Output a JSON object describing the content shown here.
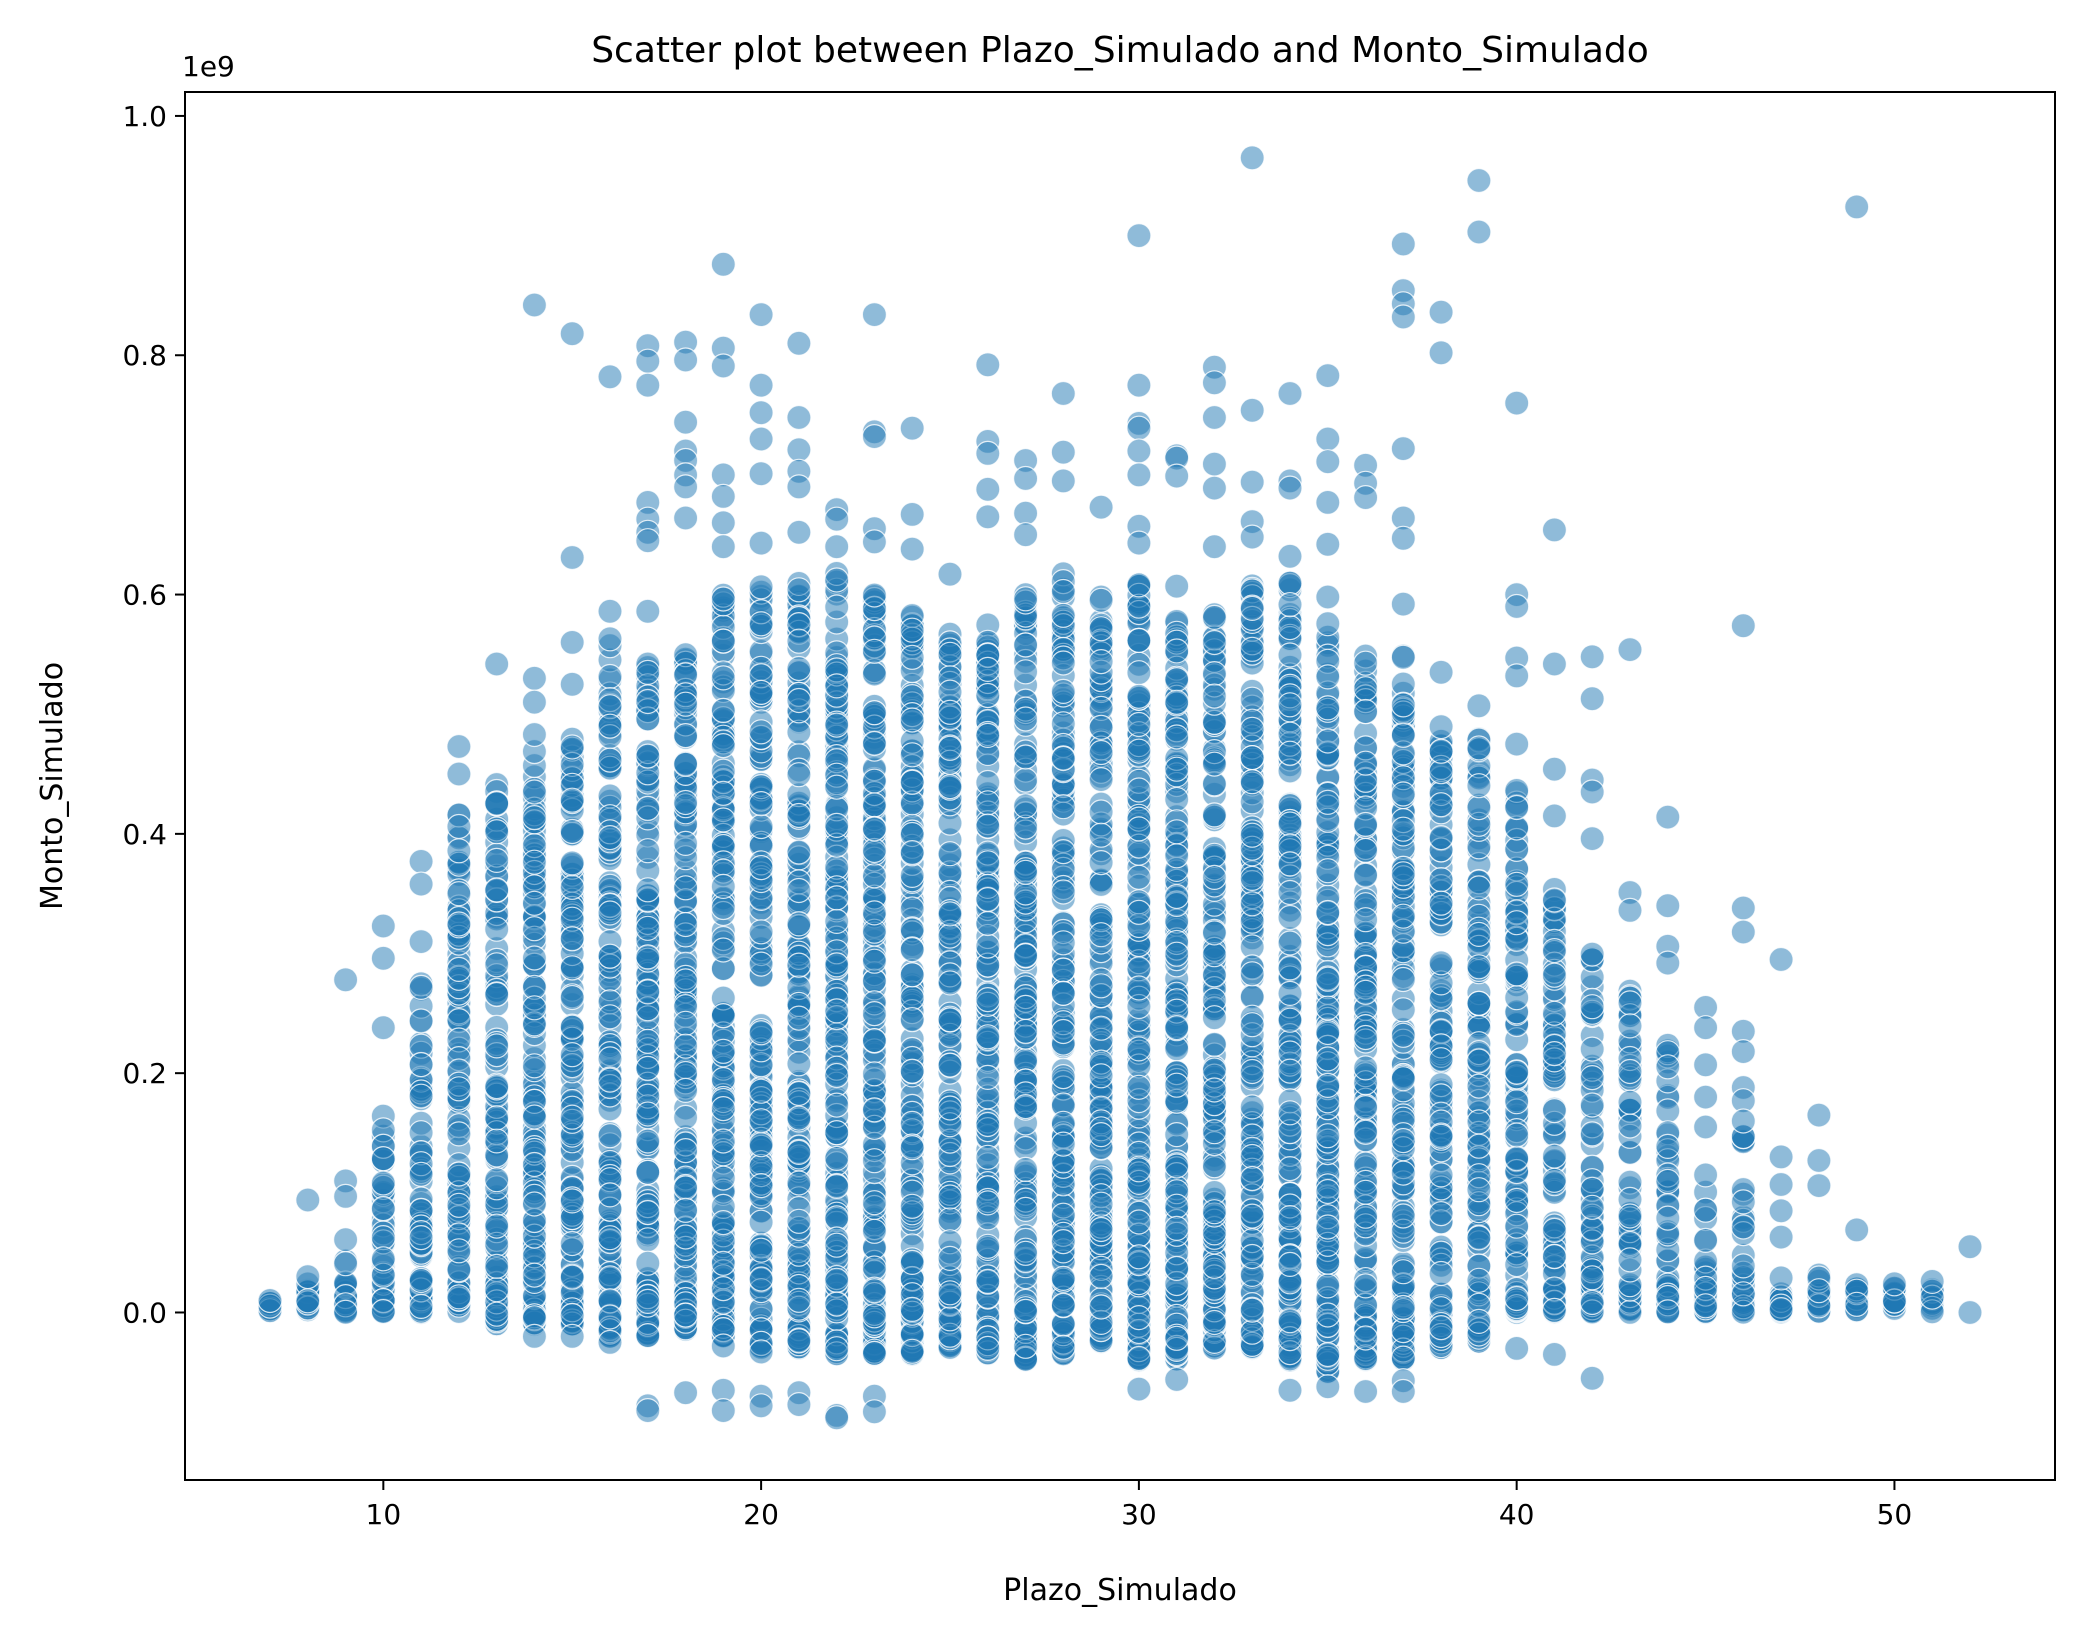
{
  "chart_data": {
    "type": "scatter",
    "title": "Scatter plot between Plazo_Simulado and Monto_Simulado",
    "xlabel": "Plazo_Simulado",
    "ylabel": "Monto_Simulado",
    "y_offset_text": "1e9",
    "xlim": [
      4.75,
      54.25
    ],
    "ylim": [
      -0.14,
      1.02
    ],
    "x_ticks": [
      10,
      20,
      30,
      40,
      50
    ],
    "x_tick_labels": [
      "10",
      "20",
      "30",
      "40",
      "50"
    ],
    "y_ticks": [
      0.0,
      0.2,
      0.4,
      0.6,
      0.8,
      1.0
    ],
    "y_tick_labels": [
      "0.0",
      "0.2",
      "0.4",
      "0.6",
      "0.8",
      "1.0"
    ],
    "grid": false,
    "legend": "none",
    "colors": {
      "marker": "#1f77b4",
      "marker_edge": "#ffffff",
      "axes": "#000000",
      "background": "#ffffff"
    },
    "marker_alpha": 0.5,
    "dense_columns": [
      {
        "x": 7,
        "min": 0.0,
        "max": 0.01,
        "density": 0.4
      },
      {
        "x": 8,
        "min": 0.0,
        "max": 0.03,
        "density": 0.6
      },
      {
        "x": 9,
        "min": 0.0,
        "max": 0.065,
        "density": 0.7
      },
      {
        "x": 10,
        "min": 0.0,
        "max": 0.165,
        "density": 0.8
      },
      {
        "x": 11,
        "min": 0.0,
        "max": 0.28,
        "density": 0.85
      },
      {
        "x": 12,
        "min": 0.0,
        "max": 0.42,
        "density": 0.9
      },
      {
        "x": 13,
        "min": -0.01,
        "max": 0.445,
        "density": 0.9
      },
      {
        "x": 14,
        "min": -0.01,
        "max": 0.47,
        "density": 0.95
      },
      {
        "x": 15,
        "min": -0.01,
        "max": 0.49,
        "density": 0.95
      },
      {
        "x": 16,
        "min": -0.02,
        "max": 0.56,
        "density": 1.0
      },
      {
        "x": 17,
        "min": -0.02,
        "max": 0.56,
        "density": 1.0
      },
      {
        "x": 18,
        "min": -0.015,
        "max": 0.57,
        "density": 1.0
      },
      {
        "x": 19,
        "min": -0.02,
        "max": 0.6,
        "density": 1.0
      },
      {
        "x": 20,
        "min": -0.03,
        "max": 0.61,
        "density": 1.0
      },
      {
        "x": 21,
        "min": -0.03,
        "max": 0.62,
        "density": 1.0
      },
      {
        "x": 22,
        "min": -0.035,
        "max": 0.62,
        "density": 1.0
      },
      {
        "x": 23,
        "min": -0.035,
        "max": 0.6,
        "density": 1.0
      },
      {
        "x": 24,
        "min": -0.035,
        "max": 0.59,
        "density": 1.0
      },
      {
        "x": 25,
        "min": -0.03,
        "max": 0.57,
        "density": 1.0
      },
      {
        "x": 26,
        "min": -0.035,
        "max": 0.58,
        "density": 1.0
      },
      {
        "x": 27,
        "min": -0.04,
        "max": 0.6,
        "density": 1.0
      },
      {
        "x": 28,
        "min": -0.035,
        "max": 0.62,
        "density": 1.0
      },
      {
        "x": 29,
        "min": -0.025,
        "max": 0.6,
        "density": 1.0
      },
      {
        "x": 30,
        "min": -0.04,
        "max": 0.61,
        "density": 1.0
      },
      {
        "x": 31,
        "min": -0.04,
        "max": 0.58,
        "density": 1.0
      },
      {
        "x": 32,
        "min": -0.03,
        "max": 0.6,
        "density": 1.0
      },
      {
        "x": 33,
        "min": -0.03,
        "max": 0.61,
        "density": 1.0
      },
      {
        "x": 34,
        "min": -0.04,
        "max": 0.61,
        "density": 1.0
      },
      {
        "x": 35,
        "min": -0.05,
        "max": 0.6,
        "density": 1.0
      },
      {
        "x": 36,
        "min": -0.04,
        "max": 0.55,
        "density": 0.95
      },
      {
        "x": 37,
        "min": -0.04,
        "max": 0.55,
        "density": 0.95
      },
      {
        "x": 38,
        "min": -0.03,
        "max": 0.49,
        "density": 0.95
      },
      {
        "x": 39,
        "min": -0.025,
        "max": 0.48,
        "density": 0.9
      },
      {
        "x": 40,
        "min": 0.0,
        "max": 0.44,
        "density": 0.9
      },
      {
        "x": 41,
        "min": 0.0,
        "max": 0.37,
        "density": 0.85
      },
      {
        "x": 42,
        "min": 0.0,
        "max": 0.3,
        "density": 0.8
      },
      {
        "x": 43,
        "min": 0.0,
        "max": 0.27,
        "density": 0.75
      },
      {
        "x": 44,
        "min": 0.0,
        "max": 0.23,
        "density": 0.7
      },
      {
        "x": 45,
        "min": 0.0,
        "max": 0.12,
        "density": 0.6
      },
      {
        "x": 46,
        "min": 0.0,
        "max": 0.15,
        "density": 0.6
      },
      {
        "x": 47,
        "min": 0.0,
        "max": 0.035,
        "density": 0.5
      },
      {
        "x": 48,
        "min": 0.0,
        "max": 0.045,
        "density": 0.5
      },
      {
        "x": 49,
        "min": 0.0,
        "max": 0.035,
        "density": 0.4
      },
      {
        "x": 50,
        "min": 0.0,
        "max": 0.022,
        "density": 0.3
      },
      {
        "x": 51,
        "min": 0.0,
        "max": 0.02,
        "density": 0.3
      }
    ],
    "outliers": [
      {
        "x": 7,
        "y": 0.01
      },
      {
        "x": 8,
        "y": 0.094
      },
      {
        "x": 8,
        "y": 0.03
      },
      {
        "x": 9,
        "y": 0.278
      },
      {
        "x": 9,
        "y": 0.11
      },
      {
        "x": 9,
        "y": 0.097
      },
      {
        "x": 10,
        "y": 0.323
      },
      {
        "x": 10,
        "y": 0.296
      },
      {
        "x": 10,
        "y": 0.238
      },
      {
        "x": 11,
        "y": 0.377
      },
      {
        "x": 11,
        "y": 0.358
      },
      {
        "x": 11,
        "y": 0.31
      },
      {
        "x": 12,
        "y": 0.473
      },
      {
        "x": 12,
        "y": 0.45
      },
      {
        "x": 13,
        "y": 0.542
      },
      {
        "x": 14,
        "y": 0.842
      },
      {
        "x": 14,
        "y": 0.53
      },
      {
        "x": 14,
        "y": 0.51
      },
      {
        "x": 14,
        "y": 0.483
      },
      {
        "x": 14,
        "y": -0.02
      },
      {
        "x": 15,
        "y": 0.818
      },
      {
        "x": 15,
        "y": 0.631
      },
      {
        "x": 15,
        "y": 0.56
      },
      {
        "x": 15,
        "y": 0.525
      },
      {
        "x": 15,
        "y": -0.02
      },
      {
        "x": 16,
        "y": 0.782
      },
      {
        "x": 16,
        "y": 0.586
      },
      {
        "x": 16,
        "y": 0.563
      },
      {
        "x": 16,
        "y": -0.025
      },
      {
        "x": 17,
        "y": 0.808
      },
      {
        "x": 17,
        "y": 0.795
      },
      {
        "x": 17,
        "y": 0.775
      },
      {
        "x": 17,
        "y": 0.677
      },
      {
        "x": 17,
        "y": 0.663
      },
      {
        "x": 17,
        "y": 0.652
      },
      {
        "x": 17,
        "y": 0.645
      },
      {
        "x": 17,
        "y": 0.586
      },
      {
        "x": 17,
        "y": -0.078
      },
      {
        "x": 17,
        "y": -0.082
      },
      {
        "x": 18,
        "y": 0.811
      },
      {
        "x": 18,
        "y": 0.796
      },
      {
        "x": 18,
        "y": 0.744
      },
      {
        "x": 18,
        "y": 0.72
      },
      {
        "x": 18,
        "y": 0.712
      },
      {
        "x": 18,
        "y": 0.7
      },
      {
        "x": 18,
        "y": 0.69
      },
      {
        "x": 18,
        "y": 0.664
      },
      {
        "x": 18,
        "y": -0.067
      },
      {
        "x": 19,
        "y": 0.876
      },
      {
        "x": 19,
        "y": 0.806
      },
      {
        "x": 19,
        "y": 0.791
      },
      {
        "x": 19,
        "y": 0.7
      },
      {
        "x": 19,
        "y": 0.682
      },
      {
        "x": 19,
        "y": 0.66
      },
      {
        "x": 19,
        "y": 0.64
      },
      {
        "x": 19,
        "y": -0.028
      },
      {
        "x": 19,
        "y": -0.065
      },
      {
        "x": 19,
        "y": -0.082
      },
      {
        "x": 20,
        "y": 0.834
      },
      {
        "x": 20,
        "y": 0.775
      },
      {
        "x": 20,
        "y": 0.752
      },
      {
        "x": 20,
        "y": 0.73
      },
      {
        "x": 20,
        "y": 0.701
      },
      {
        "x": 20,
        "y": 0.643
      },
      {
        "x": 20,
        "y": -0.033
      },
      {
        "x": 20,
        "y": -0.07
      },
      {
        "x": 20,
        "y": -0.078
      },
      {
        "x": 21,
        "y": 0.81
      },
      {
        "x": 21,
        "y": 0.748
      },
      {
        "x": 21,
        "y": 0.721
      },
      {
        "x": 21,
        "y": 0.703
      },
      {
        "x": 21,
        "y": 0.69
      },
      {
        "x": 21,
        "y": 0.652
      },
      {
        "x": 21,
        "y": -0.067
      },
      {
        "x": 21,
        "y": -0.077
      },
      {
        "x": 22,
        "y": 0.671
      },
      {
        "x": 22,
        "y": 0.663
      },
      {
        "x": 22,
        "y": 0.64
      },
      {
        "x": 22,
        "y": -0.086
      },
      {
        "x": 22,
        "y": -0.088
      },
      {
        "x": 23,
        "y": 0.834
      },
      {
        "x": 23,
        "y": 0.736
      },
      {
        "x": 23,
        "y": 0.732
      },
      {
        "x": 23,
        "y": 0.655
      },
      {
        "x": 23,
        "y": 0.644
      },
      {
        "x": 23,
        "y": -0.07
      },
      {
        "x": 23,
        "y": -0.083
      },
      {
        "x": 24,
        "y": 0.739
      },
      {
        "x": 24,
        "y": 0.667
      },
      {
        "x": 24,
        "y": 0.638
      },
      {
        "x": 25,
        "y": 0.617
      },
      {
        "x": 26,
        "y": 0.792
      },
      {
        "x": 26,
        "y": 0.728
      },
      {
        "x": 26,
        "y": 0.718
      },
      {
        "x": 26,
        "y": 0.688
      },
      {
        "x": 26,
        "y": 0.665
      },
      {
        "x": 26,
        "y": -0.03
      },
      {
        "x": 27,
        "y": 0.712
      },
      {
        "x": 27,
        "y": 0.697
      },
      {
        "x": 27,
        "y": 0.668
      },
      {
        "x": 27,
        "y": 0.65
      },
      {
        "x": 28,
        "y": 0.768
      },
      {
        "x": 28,
        "y": 0.719
      },
      {
        "x": 28,
        "y": 0.695
      },
      {
        "x": 29,
        "y": 0.673
      },
      {
        "x": 30,
        "y": 0.9
      },
      {
        "x": 30,
        "y": 0.775
      },
      {
        "x": 30,
        "y": 0.743
      },
      {
        "x": 30,
        "y": 0.739
      },
      {
        "x": 30,
        "y": 0.72
      },
      {
        "x": 30,
        "y": 0.7
      },
      {
        "x": 30,
        "y": 0.657
      },
      {
        "x": 30,
        "y": 0.643
      },
      {
        "x": 30,
        "y": -0.064
      },
      {
        "x": 31,
        "y": 0.716
      },
      {
        "x": 31,
        "y": 0.714
      },
      {
        "x": 31,
        "y": 0.699
      },
      {
        "x": 31,
        "y": 0.607
      },
      {
        "x": 31,
        "y": -0.056
      },
      {
        "x": 32,
        "y": 0.79
      },
      {
        "x": 32,
        "y": 0.777
      },
      {
        "x": 32,
        "y": 0.748
      },
      {
        "x": 32,
        "y": 0.709
      },
      {
        "x": 32,
        "y": 0.689
      },
      {
        "x": 32,
        "y": 0.64
      },
      {
        "x": 33,
        "y": 0.965
      },
      {
        "x": 33,
        "y": 0.754
      },
      {
        "x": 33,
        "y": 0.694
      },
      {
        "x": 33,
        "y": 0.661
      },
      {
        "x": 33,
        "y": 0.648
      },
      {
        "x": 34,
        "y": 0.768
      },
      {
        "x": 34,
        "y": 0.695
      },
      {
        "x": 34,
        "y": 0.689
      },
      {
        "x": 34,
        "y": 0.632
      },
      {
        "x": 34,
        "y": -0.065
      },
      {
        "x": 35,
        "y": 0.783
      },
      {
        "x": 35,
        "y": 0.73
      },
      {
        "x": 35,
        "y": 0.711
      },
      {
        "x": 35,
        "y": 0.677
      },
      {
        "x": 35,
        "y": 0.642
      },
      {
        "x": 35,
        "y": -0.062
      },
      {
        "x": 36,
        "y": 0.708
      },
      {
        "x": 36,
        "y": 0.693
      },
      {
        "x": 36,
        "y": 0.681
      },
      {
        "x": 36,
        "y": -0.066
      },
      {
        "x": 37,
        "y": 0.893
      },
      {
        "x": 37,
        "y": 0.854
      },
      {
        "x": 37,
        "y": 0.843
      },
      {
        "x": 37,
        "y": 0.832
      },
      {
        "x": 37,
        "y": 0.722
      },
      {
        "x": 37,
        "y": 0.664
      },
      {
        "x": 37,
        "y": 0.647
      },
      {
        "x": 37,
        "y": 0.592
      },
      {
        "x": 37,
        "y": -0.057
      },
      {
        "x": 37,
        "y": -0.066
      },
      {
        "x": 38,
        "y": 0.836
      },
      {
        "x": 38,
        "y": 0.802
      },
      {
        "x": 38,
        "y": 0.535
      },
      {
        "x": 39,
        "y": 0.946
      },
      {
        "x": 39,
        "y": 0.903
      },
      {
        "x": 39,
        "y": 0.507
      },
      {
        "x": 40,
        "y": 0.76
      },
      {
        "x": 40,
        "y": 0.6
      },
      {
        "x": 40,
        "y": 0.59
      },
      {
        "x": 40,
        "y": 0.547
      },
      {
        "x": 40,
        "y": 0.532
      },
      {
        "x": 40,
        "y": 0.475
      },
      {
        "x": 40,
        "y": -0.03
      },
      {
        "x": 41,
        "y": 0.654
      },
      {
        "x": 41,
        "y": 0.542
      },
      {
        "x": 41,
        "y": 0.454
      },
      {
        "x": 41,
        "y": 0.415
      },
      {
        "x": 41,
        "y": -0.035
      },
      {
        "x": 42,
        "y": 0.548
      },
      {
        "x": 42,
        "y": 0.513
      },
      {
        "x": 42,
        "y": 0.445
      },
      {
        "x": 42,
        "y": 0.435
      },
      {
        "x": 42,
        "y": 0.396
      },
      {
        "x": 42,
        "y": -0.055
      },
      {
        "x": 43,
        "y": 0.554
      },
      {
        "x": 43,
        "y": 0.351
      },
      {
        "x": 43,
        "y": 0.336
      },
      {
        "x": 44,
        "y": 0.414
      },
      {
        "x": 44,
        "y": 0.34
      },
      {
        "x": 44,
        "y": 0.306
      },
      {
        "x": 44,
        "y": 0.292
      },
      {
        "x": 45,
        "y": 0.255
      },
      {
        "x": 45,
        "y": 0.238
      },
      {
        "x": 45,
        "y": 0.207
      },
      {
        "x": 45,
        "y": 0.18
      },
      {
        "x": 45,
        "y": 0.155
      },
      {
        "x": 46,
        "y": 0.574
      },
      {
        "x": 46,
        "y": 0.338
      },
      {
        "x": 46,
        "y": 0.318
      },
      {
        "x": 46,
        "y": 0.235
      },
      {
        "x": 46,
        "y": 0.218
      },
      {
        "x": 46,
        "y": 0.188
      },
      {
        "x": 46,
        "y": 0.177
      },
      {
        "x": 46,
        "y": 0.16
      },
      {
        "x": 47,
        "y": 0.295
      },
      {
        "x": 47,
        "y": 0.13
      },
      {
        "x": 47,
        "y": 0.107
      },
      {
        "x": 47,
        "y": 0.085
      },
      {
        "x": 47,
        "y": 0.063
      },
      {
        "x": 48,
        "y": 0.165
      },
      {
        "x": 48,
        "y": 0.127
      },
      {
        "x": 48,
        "y": 0.106
      },
      {
        "x": 49,
        "y": 0.924
      },
      {
        "x": 49,
        "y": 0.069
      },
      {
        "x": 50,
        "y": 0.024
      },
      {
        "x": 51,
        "y": 0.026
      },
      {
        "x": 52,
        "y": 0.055
      },
      {
        "x": 52,
        "y": 0.0
      }
    ]
  }
}
